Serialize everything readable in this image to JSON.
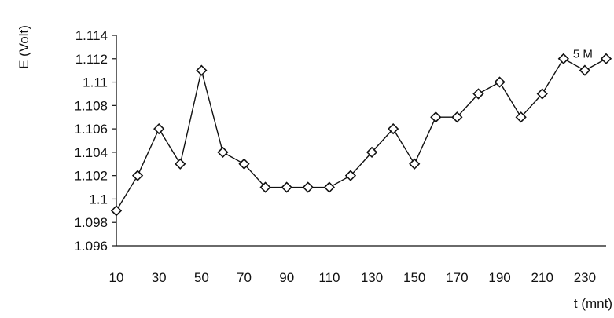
{
  "chart_data": {
    "type": "line",
    "title": "",
    "xlabel": "t (mnt)",
    "ylabel": "E (Volt)",
    "x": [
      10,
      20,
      30,
      40,
      50,
      60,
      70,
      80,
      90,
      100,
      110,
      120,
      130,
      140,
      150,
      160,
      170,
      180,
      190,
      200,
      210,
      220,
      230,
      240
    ],
    "series": [
      {
        "name": "5 M",
        "values": [
          1.099,
          1.102,
          1.106,
          1.103,
          1.111,
          1.104,
          1.103,
          1.101,
          1.101,
          1.101,
          1.101,
          1.102,
          1.104,
          1.106,
          1.103,
          1.107,
          1.107,
          1.109,
          1.11,
          1.107,
          1.109,
          1.112,
          1.111,
          1.112
        ],
        "marker": "diamond",
        "color": "#000000"
      }
    ],
    "xticks": [
      "10",
      "30",
      "50",
      "70",
      "90",
      "110",
      "130",
      "150",
      "170",
      "190",
      "210",
      "230"
    ],
    "xtick_values": [
      10,
      30,
      50,
      70,
      90,
      110,
      130,
      150,
      170,
      190,
      210,
      230
    ],
    "yticks": [
      "1.096",
      "1.098",
      "1.1",
      "1.102",
      "1.104",
      "1.106",
      "1.108",
      "1.11",
      "1.112",
      "1.114"
    ],
    "ytick_values": [
      1.096,
      1.098,
      1.1,
      1.102,
      1.104,
      1.106,
      1.108,
      1.11,
      1.112,
      1.114
    ],
    "xlim": [
      10,
      240
    ],
    "ylim": [
      1.096,
      1.114
    ],
    "grid": false,
    "legend": "none"
  }
}
